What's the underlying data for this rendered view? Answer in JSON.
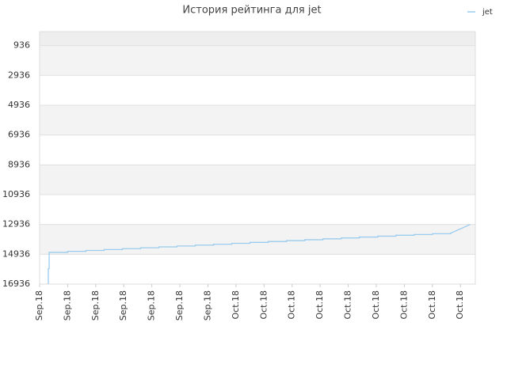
{
  "chart_data": {
    "type": "line",
    "title": "История рейтинга для jet",
    "legend": "top-right",
    "x_labels_rotated": true,
    "series": [
      {
        "name": "jet",
        "color": "#99ccee",
        "x": [
          0.31,
          0.31,
          0.34,
          0.34,
          1.0,
          1.0,
          1.65,
          1.65,
          2.3,
          2.3,
          2.95,
          2.95,
          3.6,
          3.6,
          4.25,
          4.25,
          4.9,
          4.9,
          5.55,
          5.55,
          6.2,
          6.2,
          6.85,
          6.85,
          7.5,
          7.5,
          8.15,
          8.15,
          8.8,
          8.8,
          9.45,
          9.45,
          10.1,
          10.1,
          10.75,
          10.75,
          11.4,
          11.4,
          12.05,
          12.05,
          12.7,
          12.7,
          13.35,
          13.35,
          14.0,
          14.0,
          14.65,
          14.65,
          15.35
        ],
        "values": [
          16936,
          15900,
          15900,
          14810,
          14810,
          14740,
          14740,
          14680,
          14680,
          14620,
          14620,
          14560,
          14560,
          14500,
          14500,
          14440,
          14440,
          14380,
          14380,
          14320,
          14320,
          14260,
          14260,
          14200,
          14200,
          14140,
          14140,
          14080,
          14080,
          14020,
          14020,
          13960,
          13960,
          13900,
          13900,
          13840,
          13840,
          13780,
          13780,
          13720,
          13720,
          13660,
          13660,
          13610,
          13610,
          13560,
          13560,
          13520,
          12936
        ]
      }
    ],
    "xlim": [
      0,
      15.53
    ],
    "xticks": [
      {
        "value": 0,
        "label": "Sep.18"
      },
      {
        "value": 1,
        "label": "Sep.18"
      },
      {
        "value": 2,
        "label": "Sep.18"
      },
      {
        "value": 3,
        "label": "Sep.18"
      },
      {
        "value": 4,
        "label": "Sep.18"
      },
      {
        "value": 5,
        "label": "Sep.18"
      },
      {
        "value": 6,
        "label": "Sep.18"
      },
      {
        "value": 7,
        "label": "Oct.18"
      },
      {
        "value": 8,
        "label": "Oct.18"
      },
      {
        "value": 9,
        "label": "Oct.18"
      },
      {
        "value": 10,
        "label": "Oct.18"
      },
      {
        "value": 11,
        "label": "Oct.18"
      },
      {
        "value": 12,
        "label": "Oct.18"
      },
      {
        "value": 13,
        "label": "Oct.18"
      },
      {
        "value": 14,
        "label": "Oct.18"
      },
      {
        "value": 15,
        "label": "Oct.18"
      }
    ],
    "ylim": [
      16936,
      0
    ],
    "yticks": [
      936,
      2936,
      4936,
      6936,
      8936,
      10936,
      12936,
      14936,
      16936
    ],
    "grid": true
  }
}
